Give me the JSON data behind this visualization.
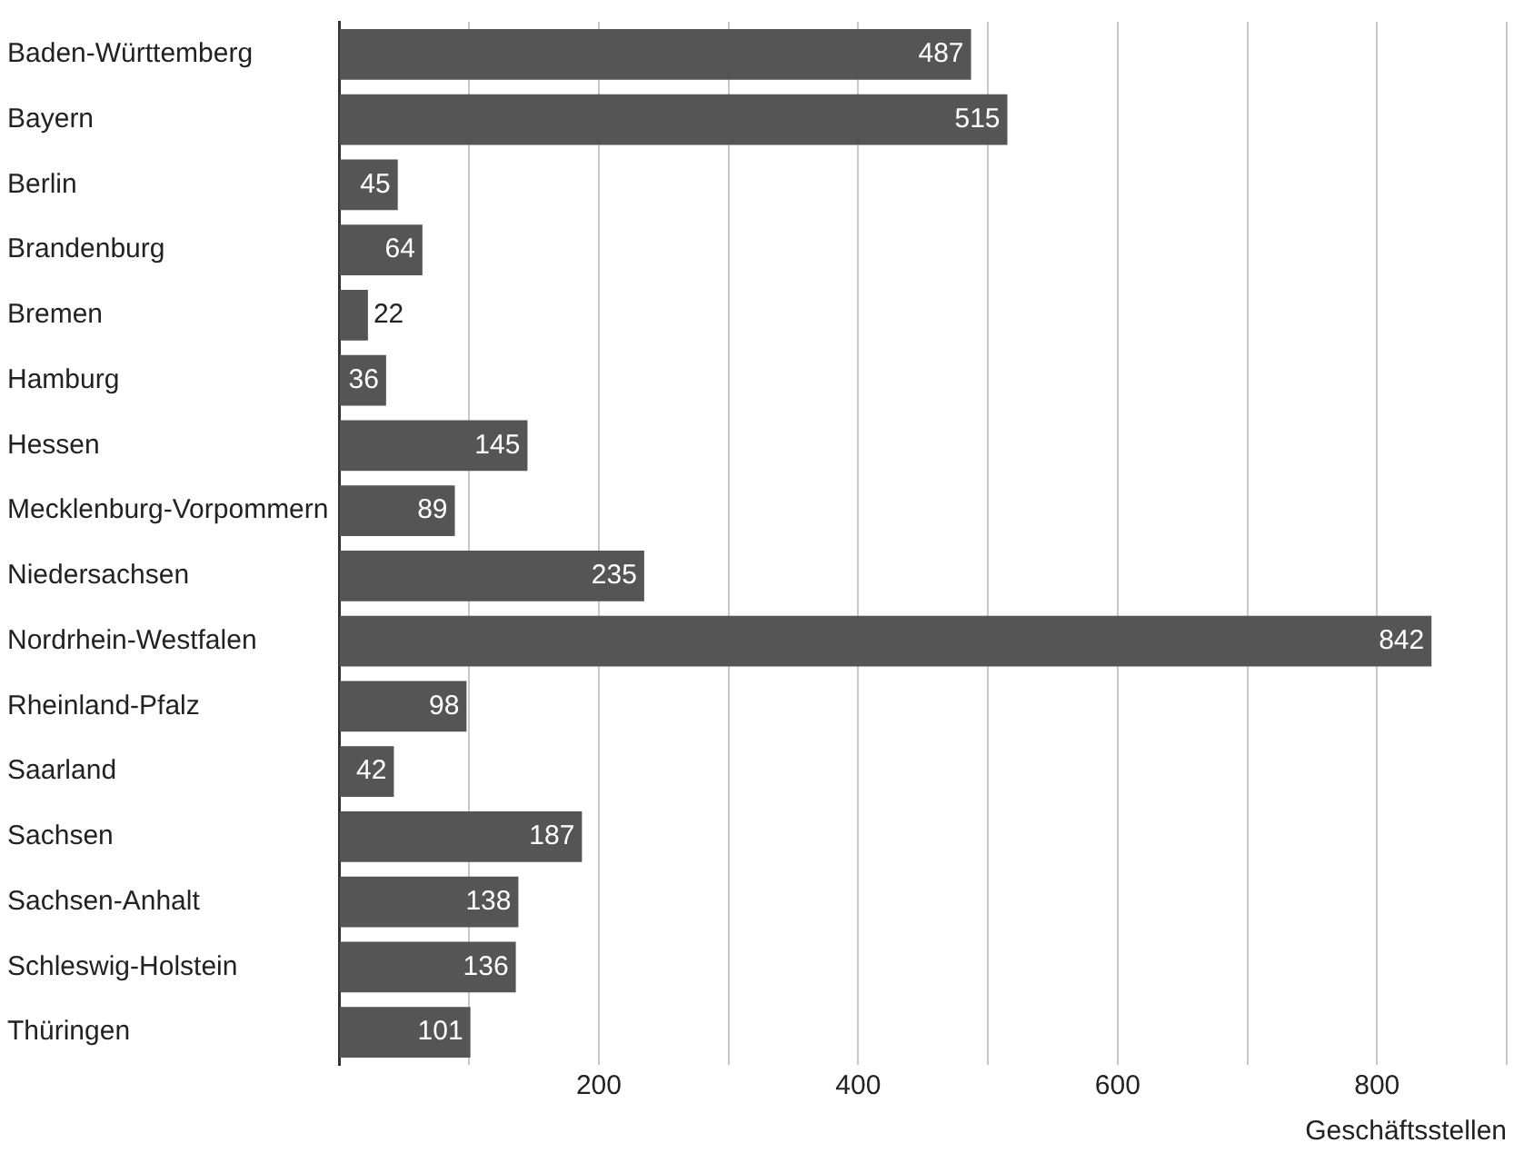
{
  "chart_data": {
    "type": "bar",
    "orientation": "horizontal",
    "xlabel": "Geschäftsstellen",
    "categories": [
      "Baden-Württemberg",
      "Bayern",
      "Berlin",
      "Brandenburg",
      "Bremen",
      "Hamburg",
      "Hessen",
      "Mecklenburg-Vorpommern",
      "Niedersachsen",
      "Nordrhein-Westfalen",
      "Rheinland-Pfalz",
      "Saarland",
      "Sachsen",
      "Sachsen-Anhalt",
      "Schleswig-Holstein",
      "Thüringen"
    ],
    "values": [
      487,
      515,
      45,
      64,
      22,
      36,
      145,
      89,
      235,
      842,
      98,
      42,
      187,
      138,
      136,
      101
    ],
    "color": "#555555",
    "data_labels": true,
    "grid": "x",
    "legend": false,
    "xlim": [
      0,
      900
    ],
    "xticks": [
      {
        "value": 100,
        "label": null
      },
      200,
      {
        "value": 300,
        "label": null
      },
      400,
      {
        "value": 500,
        "label": null
      },
      600,
      {
        "value": 700,
        "label": null
      },
      800,
      {
        "value": 900,
        "label": null
      }
    ]
  }
}
